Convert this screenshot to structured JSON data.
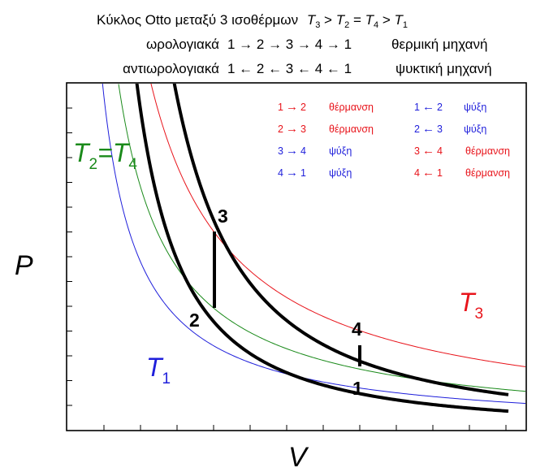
{
  "header": {
    "title_prefix": "Κύκλος Otto μεταξύ 3 ισοθέρμων",
    "order": {
      "t3": "T",
      "s3": "3",
      "g1": " > ",
      "t2": "T",
      "s2": "2",
      "eq": " = ",
      "t4": "T",
      "s4": "4",
      "g2": " > ",
      "t1": "T",
      "s1": "1"
    },
    "line2_label": "ωρολογιακά",
    "line2_cycle": "1 → 2 → 3 → 4 → 1",
    "line2_type": "θερμική μηχανή",
    "line3_label": "αντιωρολογιακά",
    "line3_cycle": "1 ← 2 ← 3 ← 4 ← 1",
    "line3_type": "ψυκτική μηχανή"
  },
  "legend": {
    "left": [
      {
        "from": "1",
        "arrow": "→",
        "to": "2",
        "text": "θέρμανση",
        "color": "#e8141b"
      },
      {
        "from": "2",
        "arrow": "→",
        "to": "3",
        "text": "θέρμανση",
        "color": "#e8141b"
      },
      {
        "from": "3",
        "arrow": "→",
        "to": "4",
        "text": "ψύξη",
        "color": "#1f1fdb"
      },
      {
        "from": "4",
        "arrow": "→",
        "to": "1",
        "text": "ψύξη",
        "color": "#1f1fdb"
      }
    ],
    "right": [
      {
        "from": "1",
        "arrow": "←",
        "to": "2",
        "text": "ψύξη",
        "color": "#1f1fdb"
      },
      {
        "from": "2",
        "arrow": "←",
        "to": "3",
        "text": "ψύξη",
        "color": "#1f1fdb"
      },
      {
        "from": "3",
        "arrow": "←",
        "to": "4",
        "text": "θέρμανση",
        "color": "#e8141b"
      },
      {
        "from": "4",
        "arrow": "←",
        "to": "1",
        "text": "θέρμανση",
        "color": "#e8141b"
      }
    ]
  },
  "axes": {
    "x_label": "V",
    "y_label": "P"
  },
  "isotherms": {
    "t3": {
      "letter": "T",
      "sub": "3",
      "color": "#e8141b"
    },
    "t24": {
      "letter1": "T",
      "sub1": "2",
      "eq": "=",
      "letter2": "T",
      "sub2": "4",
      "color": "#1a8a1a"
    },
    "t1": {
      "letter": "T",
      "sub": "1",
      "color": "#1f1fdb"
    }
  },
  "points": {
    "p1": "1",
    "p2": "2",
    "p3": "3",
    "p4": "4"
  },
  "colors": {
    "adiabat": "#000000",
    "t3": "#e8141b",
    "t24": "#1a8a1a",
    "t1": "#1f1fdb"
  }
}
